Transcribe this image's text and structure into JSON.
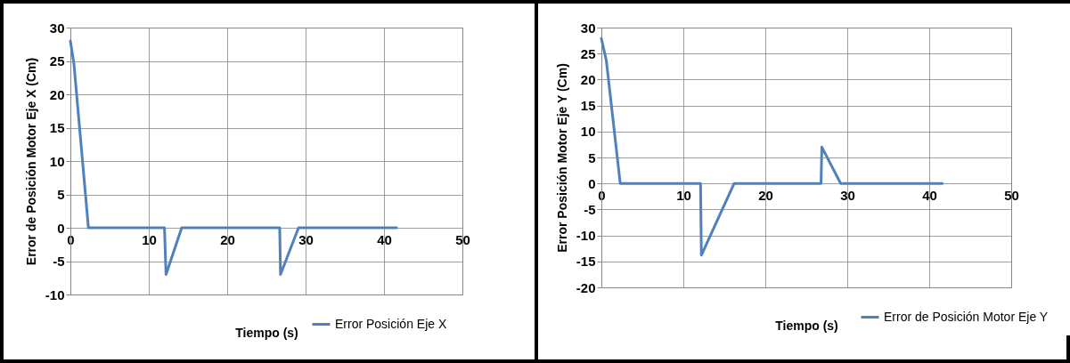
{
  "chart_data": [
    {
      "type": "line",
      "xlabel": "Tiempo (s)",
      "ylabel": "Error de Posición Motor Eje X (Cm)",
      "xlim": [
        0,
        50
      ],
      "xticks": [
        0,
        10,
        20,
        30,
        40,
        50
      ],
      "ylim": [
        -10,
        30
      ],
      "yticks": [
        -10,
        -5,
        0,
        5,
        10,
        15,
        20,
        25,
        30
      ],
      "grid": true,
      "legend": "bottom right",
      "series": [
        {
          "name": "Error Posición Eje X",
          "color": "#4f81bd",
          "x": [
            0,
            0.45,
            2.3,
            12.0,
            12.2,
            14.2,
            20,
            26.7,
            26.8,
            29.1,
            41.6
          ],
          "values": [
            28,
            24.6,
            0,
            0,
            -7,
            0,
            0,
            0,
            -7,
            0,
            0
          ]
        }
      ]
    },
    {
      "type": "line",
      "xlabel": "Tiempo (s)",
      "ylabel": "Error Posición Motor Eje Y (Cm)",
      "xlim": [
        0,
        50
      ],
      "xticks": [
        0,
        10,
        20,
        30,
        40,
        50
      ],
      "ylim": [
        -20,
        30
      ],
      "yticks": [
        -20,
        -15,
        -10,
        -5,
        0,
        5,
        10,
        15,
        20,
        25,
        30
      ],
      "grid": true,
      "legend": "bottom right",
      "series": [
        {
          "name": "Error de Posición Motor Eje Y",
          "color": "#4f81bd",
          "x": [
            0,
            0.6,
            2.3,
            12.1,
            12.2,
            16.2,
            26.8,
            26.9,
            29.2,
            41.6
          ],
          "values": [
            27.9,
            23.7,
            0,
            0,
            -13.8,
            0,
            0,
            7,
            0,
            0
          ]
        }
      ]
    }
  ]
}
